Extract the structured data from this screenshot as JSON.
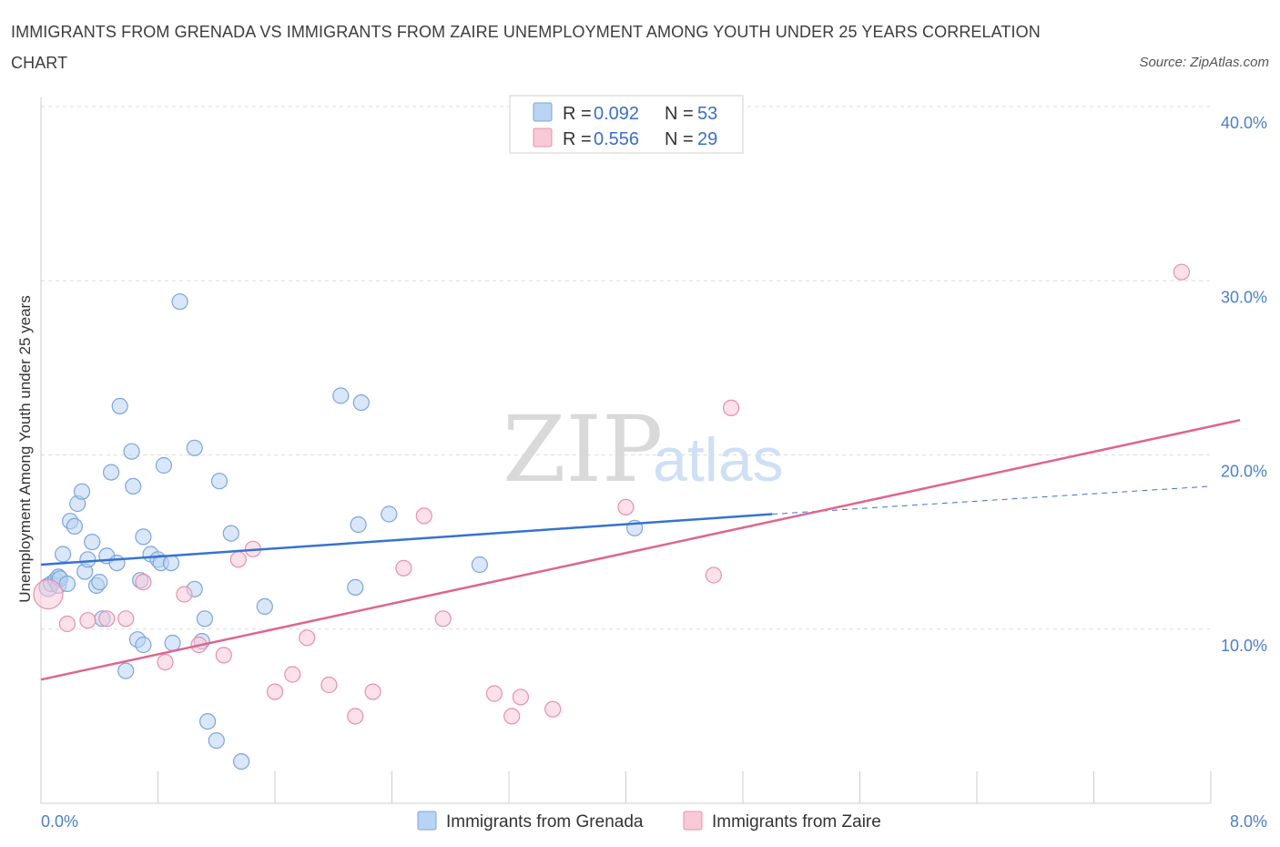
{
  "title": "IMMIGRANTS FROM GRENADA VS IMMIGRANTS FROM ZAIRE UNEMPLOYMENT AMONG YOUTH UNDER 25 YEARS CORRELATION CHART",
  "source": "Source: ZipAtlas.com",
  "watermark": {
    "zip": "ZIP",
    "atlas": "atlas"
  },
  "colors": {
    "grenada_fill": "#b9d3f3",
    "grenada_stroke": "#7aa6dd",
    "grenada_line": "#3673cf",
    "zaire_fill": "#f8c9d7",
    "zaire_stroke": "#e88fac",
    "zaire_line": "#e0648e",
    "grid": "#dcdcdc",
    "axis": "#cccccc"
  },
  "legend": {
    "rows": [
      {
        "r_label": "R = ",
        "r_value": "0.092",
        "n_label": "N = ",
        "n_value": "53"
      },
      {
        "r_label": "R = ",
        "r_value": "0.556",
        "n_label": "N = ",
        "n_value": "29"
      }
    ]
  },
  "bottom_legend": [
    "Immigrants from Grenada",
    "Immigrants from Zaire"
  ],
  "chart_data": {
    "type": "scatter",
    "xlabel": "",
    "ylabel": "Unemployment Among Youth under 25 years",
    "xlim": [
      0,
      8
    ],
    "ylim": [
      0,
      40
    ],
    "x_tick_labels": [
      {
        "value": 0,
        "label": "0.0%"
      },
      {
        "value": 8,
        "label": "8.0%"
      }
    ],
    "y_tick_labels": [
      {
        "value": 10,
        "label": "10.0%"
      },
      {
        "value": 20,
        "label": "20.0%"
      },
      {
        "value": 30,
        "label": "30.0%"
      },
      {
        "value": 40,
        "label": "40.0%"
      }
    ],
    "grid": true,
    "legend_position": "top-center",
    "series": [
      {
        "name": "Immigrants from Grenada",
        "R": 0.092,
        "N": 53,
        "trend": {
          "x0": 0.0,
          "y0": 13.7,
          "x1": 5.0,
          "y1": 16.6,
          "dash_to_x": 8.0,
          "dash_to_y": 18.2
        },
        "points": [
          [
            0.05,
            12.4
          ],
          [
            0.07,
            12.6
          ],
          [
            0.1,
            12.8
          ],
          [
            0.12,
            12.5
          ],
          [
            0.15,
            14.3
          ],
          [
            0.12,
            13.0
          ],
          [
            0.13,
            12.9
          ],
          [
            0.18,
            12.6
          ],
          [
            0.2,
            16.2
          ],
          [
            0.23,
            15.9
          ],
          [
            0.25,
            17.2
          ],
          [
            0.28,
            17.9
          ],
          [
            0.3,
            13.3
          ],
          [
            0.32,
            14.0
          ],
          [
            0.35,
            15.0
          ],
          [
            0.38,
            12.5
          ],
          [
            0.4,
            12.7
          ],
          [
            0.42,
            10.6
          ],
          [
            0.45,
            14.2
          ],
          [
            0.48,
            19.0
          ],
          [
            0.52,
            13.8
          ],
          [
            0.54,
            22.8
          ],
          [
            0.58,
            7.6
          ],
          [
            0.62,
            20.2
          ],
          [
            0.63,
            18.2
          ],
          [
            0.66,
            9.4
          ],
          [
            0.68,
            12.8
          ],
          [
            0.7,
            15.3
          ],
          [
            0.7,
            9.1
          ],
          [
            0.75,
            14.3
          ],
          [
            0.8,
            14.0
          ],
          [
            0.84,
            19.4
          ],
          [
            0.82,
            13.8
          ],
          [
            0.89,
            13.8
          ],
          [
            0.9,
            9.2
          ],
          [
            0.95,
            28.8
          ],
          [
            1.05,
            20.4
          ],
          [
            1.05,
            12.3
          ],
          [
            1.1,
            9.3
          ],
          [
            1.12,
            10.6
          ],
          [
            1.14,
            4.7
          ],
          [
            1.2,
            3.6
          ],
          [
            1.22,
            18.5
          ],
          [
            1.3,
            15.5
          ],
          [
            1.37,
            2.4
          ],
          [
            1.53,
            11.3
          ],
          [
            2.05,
            23.4
          ],
          [
            2.15,
            12.4
          ],
          [
            2.17,
            16.0
          ],
          [
            2.19,
            23.0
          ],
          [
            2.38,
            16.6
          ],
          [
            3.0,
            13.7
          ],
          [
            4.06,
            15.8
          ]
        ]
      },
      {
        "name": "Immigrants from Zaire",
        "R": 0.556,
        "N": 29,
        "trend": {
          "x0": 0.0,
          "y0": 7.1,
          "x1": 8.2,
          "y1": 22.0
        },
        "points": [
          [
            0.05,
            12.0
          ],
          [
            0.18,
            10.3
          ],
          [
            0.32,
            10.5
          ],
          [
            0.45,
            10.6
          ],
          [
            0.58,
            10.6
          ],
          [
            0.7,
            12.7
          ],
          [
            0.85,
            8.1
          ],
          [
            0.98,
            12.0
          ],
          [
            1.08,
            9.1
          ],
          [
            1.25,
            8.5
          ],
          [
            1.35,
            14.0
          ],
          [
            1.45,
            14.6
          ],
          [
            1.6,
            6.4
          ],
          [
            1.72,
            7.4
          ],
          [
            1.82,
            9.5
          ],
          [
            1.97,
            6.8
          ],
          [
            2.15,
            5.0
          ],
          [
            2.27,
            6.4
          ],
          [
            2.48,
            13.5
          ],
          [
            2.62,
            16.5
          ],
          [
            2.75,
            10.6
          ],
          [
            3.1,
            6.3
          ],
          [
            3.22,
            5.0
          ],
          [
            3.28,
            6.1
          ],
          [
            3.5,
            5.4
          ],
          [
            4.0,
            17.0
          ],
          [
            4.6,
            13.1
          ],
          [
            4.72,
            22.7
          ],
          [
            7.8,
            30.5
          ]
        ]
      }
    ]
  }
}
